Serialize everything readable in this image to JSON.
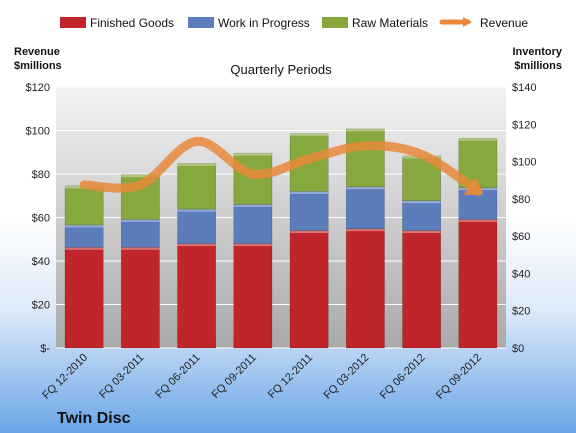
{
  "chart_data": {
    "type": "bar",
    "stacked": true,
    "company": "Twin Disc",
    "title": "Quarterly Periods",
    "left_axis_label": [
      "Revenue",
      "$millions"
    ],
    "right_axis_label": [
      "Inventory",
      "$millions"
    ],
    "categories": [
      "FQ 12-2010",
      "FQ 03-2011",
      "FQ 06-2011",
      "FQ 09-2011",
      "FQ 12-2011",
      "FQ 03-2012",
      "FQ 06-2012",
      "FQ 09-2012"
    ],
    "left_ylim": [
      0,
      120
    ],
    "right_ylim": [
      0,
      140
    ],
    "left_ticks": [
      "$-",
      "$20",
      "$40",
      "$60",
      "$80",
      "$100",
      "$120"
    ],
    "right_ticks": [
      "$0",
      "$20",
      "$40",
      "$60",
      "$80",
      "$100",
      "$120",
      "$140"
    ],
    "legend_position": "top",
    "grid": true,
    "series": [
      {
        "name": "Finished Goods",
        "axis": "right",
        "color": "#c0252b",
        "values": [
          54,
          54,
          56,
          56,
          63,
          64,
          63,
          69
        ]
      },
      {
        "name": "Work in Progress",
        "axis": "right",
        "color": "#5c7dbb",
        "values": [
          12,
          15,
          18.5,
          21,
          21,
          22.5,
          16,
          17
        ]
      },
      {
        "name": "Raw Materials",
        "axis": "right",
        "color": "#86a83e",
        "values": [
          21,
          24,
          24.5,
          27.5,
          31,
          31,
          24,
          26.5
        ]
      },
      {
        "name": "Revenue",
        "axis": "left",
        "type": "line",
        "color": "#e8893a",
        "values": [
          75,
          75,
          95,
          80,
          87,
          93,
          89,
          72
        ]
      }
    ]
  }
}
